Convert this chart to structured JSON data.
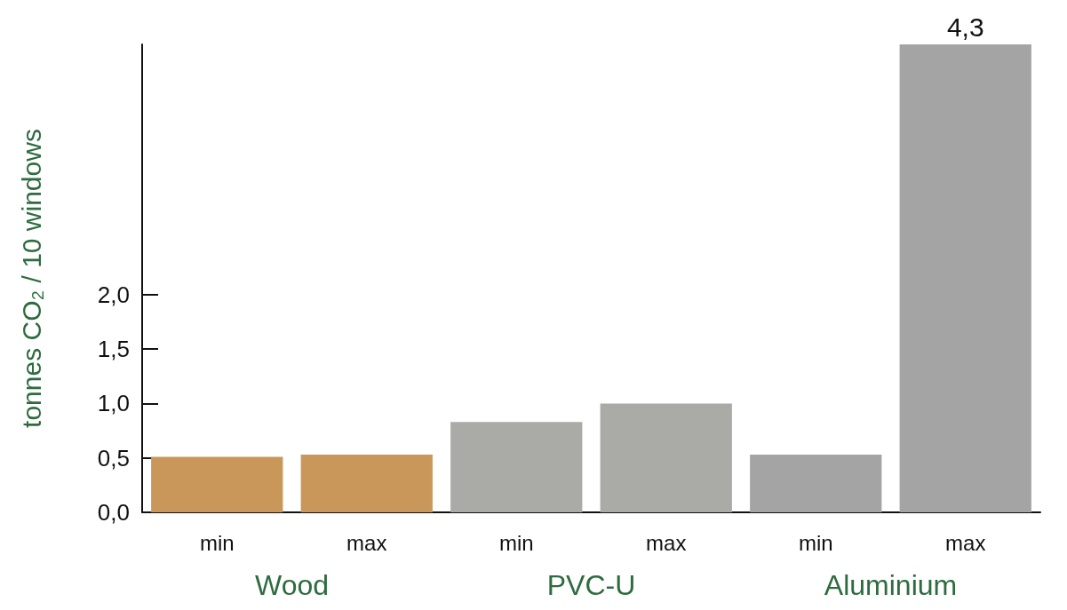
{
  "chart_data": {
    "type": "bar",
    "ylabel": "tonnes CO₂ / 10 windows",
    "categories": [
      "min",
      "max",
      "min",
      "max",
      "min",
      "max"
    ],
    "values": [
      0.51,
      0.53,
      0.83,
      1.0,
      0.53,
      4.3
    ],
    "colors": [
      "#c9975a",
      "#c9975a",
      "#aaaaa6",
      "#aaaaa6",
      "#a4a4a4",
      "#a4a4a4"
    ],
    "value_labels": [
      null,
      null,
      null,
      null,
      null,
      "4,3"
    ],
    "annotations": [
      "Wood",
      "PVC-U",
      "Aluminium"
    ],
    "ylim": [
      0,
      4.3
    ],
    "yticks": [
      {
        "value": 0,
        "label": "0,0"
      },
      {
        "value": 0.5,
        "label": "0,5"
      },
      {
        "value": 1,
        "label": "1,0"
      },
      {
        "value": 1.5,
        "label": "1,5"
      },
      {
        "value": 2,
        "label": "2,0"
      }
    ],
    "grid": false
  }
}
